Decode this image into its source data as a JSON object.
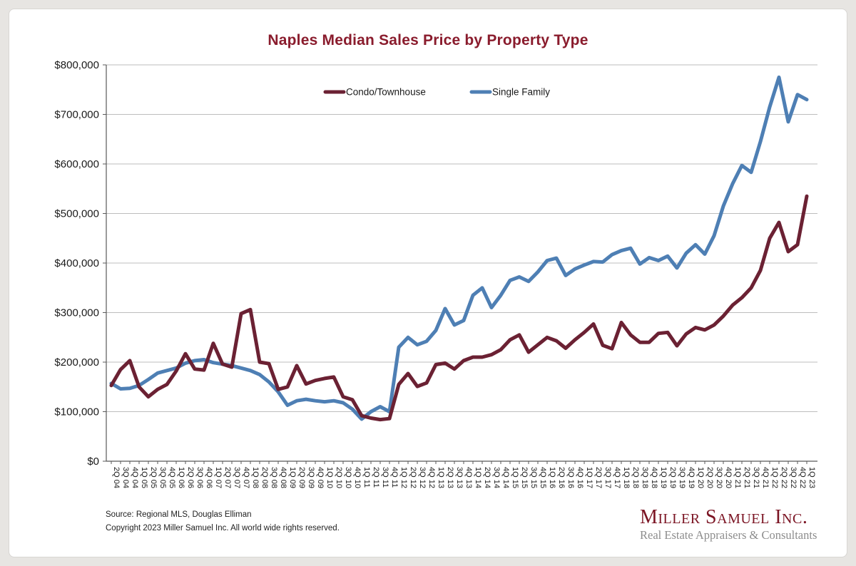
{
  "page": {
    "title": "Naples Median Sales Price by Property Type"
  },
  "footer": {
    "source_line": "Source: Regional MLS, Douglas Elliman",
    "copyright_line": "Copyright 2023 Miller Samuel Inc.  All world wide rights reserved."
  },
  "branding": {
    "company": "Miller Samuel Inc.",
    "tagline": "Real Estate Appraisers & Consultants"
  },
  "chart_data": {
    "type": "line",
    "title": "Naples Median Sales Price by Property Type",
    "xlabel": "",
    "ylabel": "",
    "ylim": [
      0,
      800000
    ],
    "y_tick_step": 100000,
    "y_tick_labels": [
      "$0",
      "$100,000",
      "$200,000",
      "$300,000",
      "$400,000",
      "$500,000",
      "$600,000",
      "$700,000",
      "$800,000"
    ],
    "grid": "horizontal",
    "legend_position": "top-inside",
    "x_label_rotation": 90,
    "categories": [
      "2Q 04",
      "3Q 04",
      "4Q 04",
      "1Q 05",
      "2Q 05",
      "3Q 05",
      "4Q 05",
      "1Q 06",
      "2Q 06",
      "3Q 06",
      "4Q 06",
      "1Q 07",
      "2Q 07",
      "3Q 07",
      "4Q 07",
      "1Q 08",
      "2Q 08",
      "3Q 08",
      "4Q 08",
      "1Q 09",
      "2Q 09",
      "3Q 09",
      "4Q 09",
      "1Q 10",
      "2Q 10",
      "3Q 10",
      "4Q 10",
      "1Q 11",
      "2Q 11",
      "3Q 11",
      "4Q 11",
      "1Q 12",
      "2Q 12",
      "3Q 12",
      "4Q 12",
      "1Q 13",
      "2Q 13",
      "3Q 13",
      "4Q 13",
      "1Q 14",
      "2Q 14",
      "3Q 14",
      "4Q 14",
      "1Q 15",
      "2Q 15",
      "3Q 15",
      "4Q 15",
      "1Q 16",
      "2Q 16",
      "3Q 16",
      "4Q 16",
      "1Q 17",
      "2Q 17",
      "3Q 17",
      "4Q 17",
      "1Q 18",
      "2Q 18",
      "3Q 18",
      "4Q 18",
      "1Q 19",
      "2Q 19",
      "3Q 19",
      "4Q 19",
      "1Q 20",
      "2Q 20",
      "3Q 20",
      "4Q 20",
      "1Q 21",
      "2Q 21",
      "3Q 21",
      "4Q 21",
      "1Q 22",
      "2Q 22",
      "3Q 22",
      "4Q 22",
      "1Q 23"
    ],
    "series": [
      {
        "name": "Condo/Townhouse",
        "color": "#6b2133",
        "values": [
          153000,
          185000,
          203000,
          150000,
          130000,
          145000,
          155000,
          182000,
          217000,
          186000,
          184000,
          238000,
          196000,
          190000,
          298000,
          306000,
          200000,
          197000,
          145000,
          150000,
          193000,
          156000,
          163000,
          167000,
          170000,
          130000,
          124000,
          92000,
          87000,
          84000,
          86000,
          155000,
          177000,
          151000,
          158000,
          195000,
          198000,
          186000,
          203000,
          210000,
          210000,
          215000,
          225000,
          245000,
          255000,
          220000,
          235000,
          250000,
          243000,
          228000,
          245000,
          260000,
          277000,
          234000,
          227000,
          280000,
          255000,
          240000,
          240000,
          258000,
          260000,
          233000,
          257000,
          270000,
          265000,
          275000,
          293000,
          315000,
          330000,
          350000,
          385000,
          450000,
          482000,
          423000,
          437000,
          535000
        ]
      },
      {
        "name": "Single Family",
        "color": "#4e7fb4",
        "values": [
          157000,
          146000,
          147000,
          153000,
          165000,
          178000,
          183000,
          188000,
          198000,
          203000,
          205000,
          199000,
          196000,
          193000,
          188000,
          183000,
          175000,
          160000,
          140000,
          113000,
          122000,
          125000,
          122000,
          120000,
          122000,
          118000,
          105000,
          85000,
          100000,
          110000,
          100000,
          230000,
          250000,
          235000,
          242000,
          264000,
          308000,
          275000,
          284000,
          335000,
          350000,
          310000,
          335000,
          365000,
          372000,
          363000,
          382000,
          405000,
          410000,
          375000,
          388000,
          396000,
          403000,
          402000,
          417000,
          425000,
          430000,
          398000,
          411000,
          405000,
          414000,
          390000,
          420000,
          437000,
          418000,
          455000,
          515000,
          560000,
          597000,
          583000,
          645000,
          715000,
          775000,
          685000,
          740000,
          730000
        ]
      }
    ]
  }
}
